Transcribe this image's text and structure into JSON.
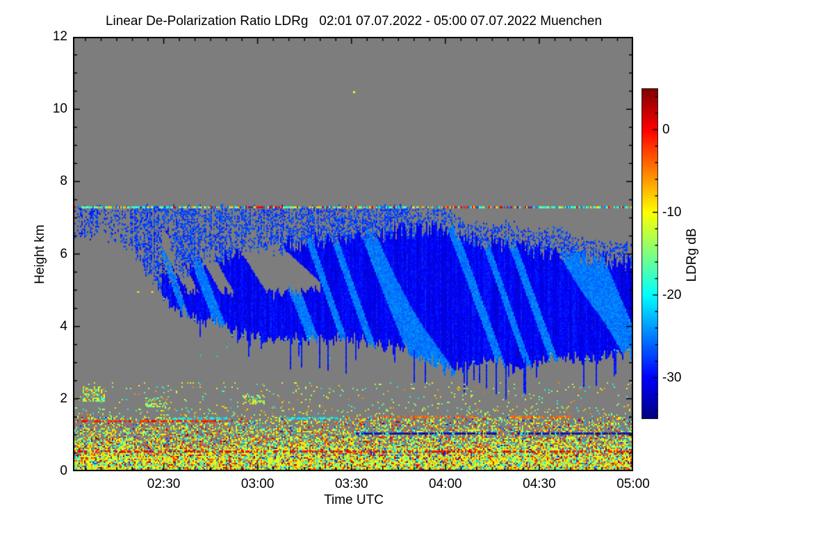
{
  "title": "Linear De-Polarization Ratio LDRg   02:01 07.07.2022 - 05:00 07.07.2022 Muenchen",
  "x_axis": {
    "label": "Time UTC",
    "tick_labels": [
      "02:30",
      "03:00",
      "03:30",
      "04:00",
      "04:30",
      "05:00"
    ],
    "tick_minutes": [
      30,
      60,
      90,
      120,
      150,
      180
    ],
    "start_minute_after_0200": 1,
    "end_minute_after_0200": 180,
    "minor_tick_step_min": 5
  },
  "y_axis": {
    "label": "Height km",
    "tick_labels": [
      "0",
      "2",
      "4",
      "6",
      "8",
      "10",
      "12"
    ],
    "tick_values": [
      0,
      2,
      4,
      6,
      8,
      10,
      12
    ],
    "range_km": [
      0,
      12
    ],
    "minor_tick_step_km": 0.5
  },
  "colorbar": {
    "label": "LDRg dB",
    "tick_labels": [
      "0",
      "-10",
      "-20",
      "-30"
    ],
    "tick_values": [
      0,
      -10,
      -20,
      -30
    ],
    "range_db": [
      -35,
      5
    ],
    "minor_tick_step_db": 2,
    "colormap": "jet"
  },
  "colors": {
    "background": "#ffffff",
    "no_data_gray": "#7d7d7d",
    "frame": "#000000",
    "dense_cloud_blue": "#0d0de0"
  },
  "chart_data": {
    "type": "heatmap",
    "title": "Linear De-Polarization Ratio LDRg   02:01 07.07.2022 - 05:00 07.07.2022 Muenchen",
    "site": "Muenchen",
    "xlabel": "Time UTC",
    "ylabel": "Height km",
    "zlabel": "LDRg dB",
    "x_range": [
      "02:01",
      "05:00"
    ],
    "y_range_km": [
      0,
      12
    ],
    "z_range_db": [
      -35,
      5
    ],
    "legend_position": "right colorbar",
    "grid": false,
    "features": {
      "no_data_background": "uniform gray, all heights with no signal",
      "artifact_line_km": 7.3,
      "artifact_line_red_segments_min": [
        [
          57,
          68
        ],
        [
          118,
          148
        ]
      ],
      "cloud_streak_top_km": [
        [
          1,
          7.3
        ],
        [
          118,
          7.3
        ],
        [
          125,
          7.0
        ],
        [
          132,
          6.8
        ],
        [
          140,
          6.9
        ],
        [
          148,
          6.6
        ],
        [
          155,
          6.8
        ],
        [
          162,
          6.4
        ],
        [
          180,
          6.3
        ]
      ],
      "cloud_dense_top_km": [
        [
          29,
          6.9
        ],
        [
          35,
          5.4
        ],
        [
          45,
          5.7
        ],
        [
          60,
          6.0
        ],
        [
          75,
          6.2
        ],
        [
          90,
          6.3
        ],
        [
          105,
          6.5
        ],
        [
          118,
          6.6
        ],
        [
          128,
          6.3
        ],
        [
          140,
          6.1
        ],
        [
          155,
          5.9
        ],
        [
          168,
          5.7
        ],
        [
          180,
          5.6
        ]
      ],
      "cloud_base_km": [
        [
          29,
          4.9
        ],
        [
          33,
          4.5
        ],
        [
          40,
          4.3
        ],
        [
          48,
          4.1
        ],
        [
          55,
          3.8
        ],
        [
          65,
          3.75
        ],
        [
          77,
          3.65
        ],
        [
          88,
          3.7
        ],
        [
          99,
          3.55
        ],
        [
          108,
          3.35
        ],
        [
          115,
          3.05
        ],
        [
          122,
          2.8
        ],
        [
          128,
          2.95
        ],
        [
          135,
          3.1
        ],
        [
          142,
          2.9
        ],
        [
          150,
          3.05
        ],
        [
          158,
          3.2
        ],
        [
          166,
          3.15
        ],
        [
          172,
          3.25
        ],
        [
          180,
          3.3
        ]
      ],
      "pre_dense_streak_bottom_km": [
        [
          1,
          6.4
        ],
        [
          10,
          6.4
        ],
        [
          15,
          6.2
        ],
        [
          20,
          6.0
        ],
        [
          24,
          5.4
        ],
        [
          27,
          5.0
        ],
        [
          29,
          4.9
        ]
      ],
      "cloud_typical_ldr_db": -31,
      "cloud_bright_patch_ldr_db": -26,
      "isolated_pixel": {
        "minute": 90.5,
        "km": 10.5,
        "ldr_db": -10
      },
      "yellow_dots": [
        [
          21.5,
          4.97
        ],
        [
          26,
          4.97
        ]
      ],
      "cyan_dots_band": {
        "from_min": 18,
        "to_min": 88,
        "km_lo": 3.0,
        "km_hi": 3.5,
        "ldr_db": -21
      },
      "boundary_layer_top_km": 1.5,
      "speckle_top_km": 2.45,
      "boundary_layer_dominant_ldr_db": [
        -13,
        -5
      ],
      "lines": [
        {
          "km": 1.39,
          "from_min": 1,
          "to_min": 52,
          "db": -1,
          "note": "red-orange"
        },
        {
          "km": 1.47,
          "from_min": 33,
          "to_min": 50,
          "db": -21,
          "note": "cyan"
        },
        {
          "km": 1.47,
          "from_min": 68,
          "to_min": 88,
          "db": -21,
          "note": "cyan-yellow"
        },
        {
          "km": 1.51,
          "from_min": 100,
          "to_min": 133,
          "db": -4,
          "note": "orange-dark red"
        },
        {
          "km": 1.51,
          "from_min": 141,
          "to_min": 161,
          "db": -4,
          "note": "orange"
        },
        {
          "km": 1.05,
          "from_min": 91,
          "to_min": 136,
          "db": -33,
          "note": "dark blue"
        },
        {
          "km": 1.05,
          "from_min": 143,
          "to_min": 180,
          "db": -33,
          "note": "dark blue"
        },
        {
          "km": 0.55,
          "from_min": 1,
          "to_min": 180,
          "db": 0,
          "note": "red speckled"
        }
      ],
      "speckle_clusters": [
        {
          "from_min": 4,
          "to_min": 11,
          "km_lo": 1.95,
          "km_hi": 2.35
        },
        {
          "from_min": 24,
          "to_min": 31,
          "km_lo": 1.8,
          "km_hi": 2.05
        },
        {
          "from_min": 55,
          "to_min": 62,
          "km_lo": 1.85,
          "km_hi": 2.15
        }
      ]
    }
  }
}
